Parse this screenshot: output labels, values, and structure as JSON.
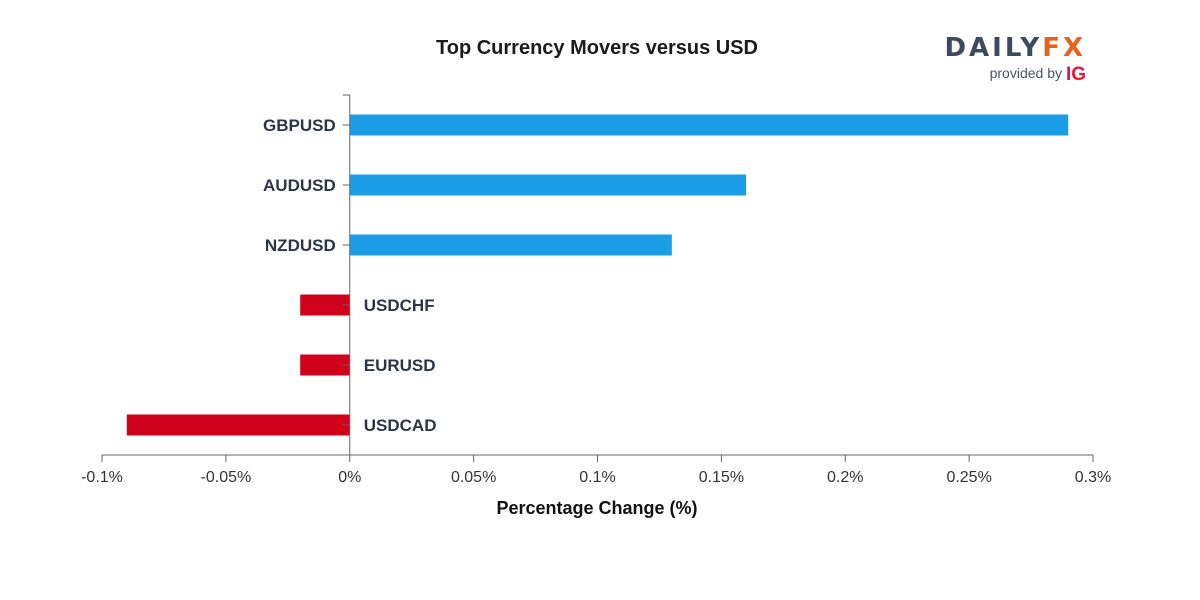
{
  "chart_data": {
    "type": "bar",
    "orientation": "horizontal",
    "title": "Top Currency Movers versus USD",
    "xlabel": "Percentage Change (%)",
    "ylabel": "",
    "xlim": [
      -0.1,
      0.3
    ],
    "xticks": [
      -0.1,
      -0.05,
      0,
      0.05,
      0.1,
      0.15,
      0.2,
      0.25,
      0.3
    ],
    "xtick_labels": [
      "-0.1%",
      "-0.05%",
      "0%",
      "0.05%",
      "0.1%",
      "0.15%",
      "0.2%",
      "0.25%",
      "0.3%"
    ],
    "categories": [
      "GBPUSD",
      "AUDUSD",
      "NZDUSD",
      "USDCHF",
      "EURUSD",
      "USDCAD"
    ],
    "values": [
      0.29,
      0.16,
      0.13,
      -0.02,
      -0.02,
      -0.09
    ],
    "grid": false,
    "legend": "none",
    "colors": {
      "positive": "#1b9ee6",
      "negative": "#d0021b"
    }
  },
  "logo": {
    "brand_part1": "DAILY",
    "brand_part2": "FX",
    "provided_by": "provided by",
    "ig": "IG",
    "colors": {
      "daily": "#3b4a5e",
      "fx": "#e8621c",
      "ig": "#e8143c"
    }
  }
}
